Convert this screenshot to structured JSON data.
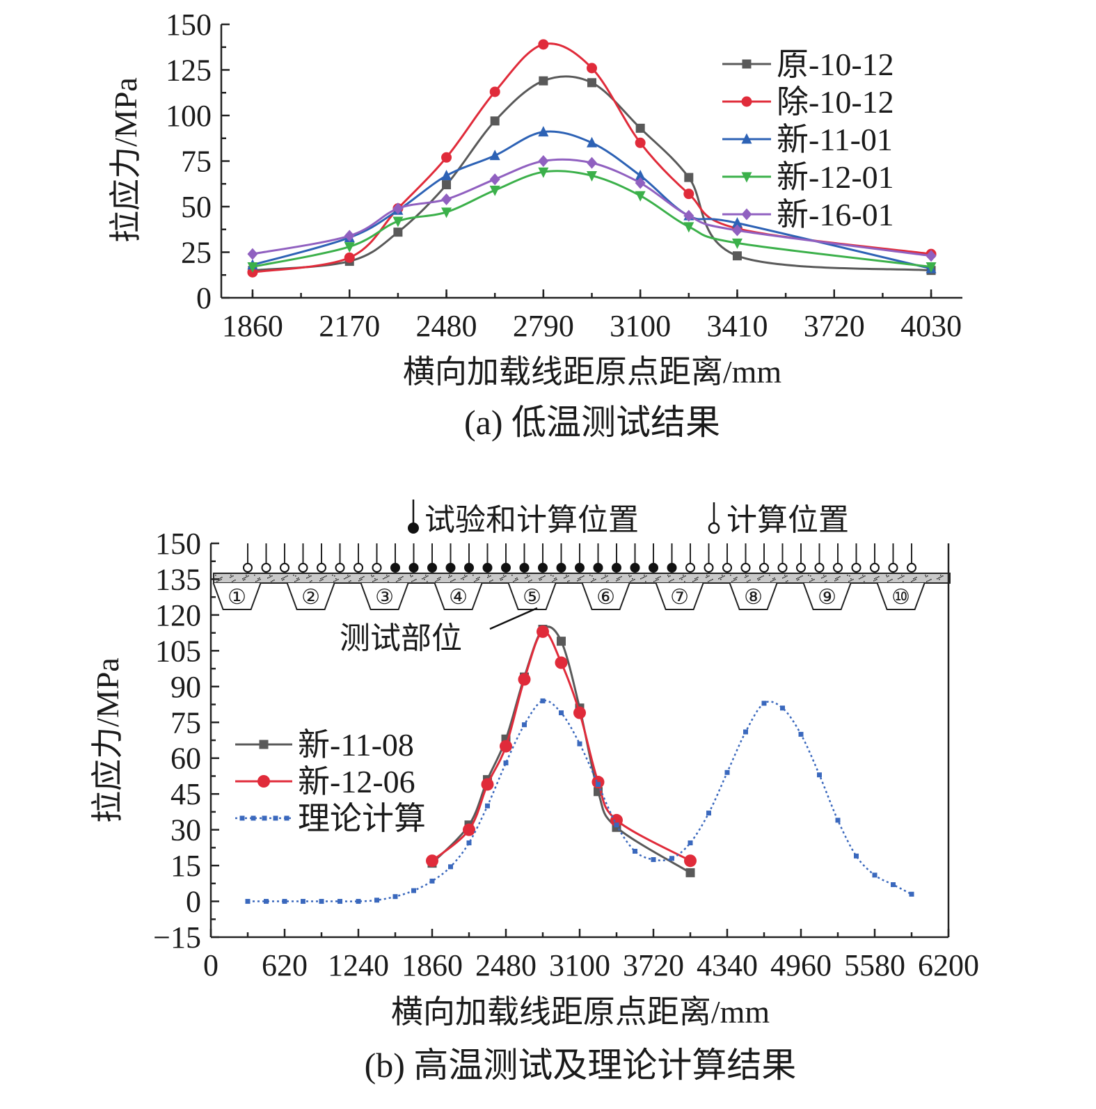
{
  "chart_data": [
    {
      "type": "line",
      "caption": "(a) 低温测试结果",
      "xlabel": "横向加载线距原点距离/mm",
      "ylabel": "拉应力/MPa",
      "xlim": [
        1760,
        4130
      ],
      "ylim": [
        0,
        150
      ],
      "xticks": [
        "1860",
        "2170",
        "2480",
        "2790",
        "3100",
        "3410",
        "3720",
        "4030"
      ],
      "yticks": [
        "0",
        "25",
        "50",
        "75",
        "100",
        "125",
        "150"
      ],
      "legend": "top-right",
      "series": [
        {
          "name": "原-10-12",
          "color": "#595959",
          "marker": "square",
          "x": [
            1860,
            2170,
            2325,
            2480,
            2635,
            2790,
            2945,
            3100,
            3255,
            3410,
            4030
          ],
          "y": [
            15,
            20,
            36,
            62,
            97,
            119,
            118,
            93,
            66,
            23,
            15
          ]
        },
        {
          "name": "除-10-12",
          "color": "#e02b3a",
          "marker": "circle",
          "x": [
            1860,
            2170,
            2325,
            2480,
            2635,
            2790,
            2945,
            3100,
            3255,
            3410,
            4030
          ],
          "y": [
            14,
            22,
            49,
            77,
            113,
            139,
            126,
            85,
            57,
            38,
            24
          ]
        },
        {
          "name": "新-11-01",
          "color": "#2d62b5",
          "marker": "triangle-up",
          "x": [
            1860,
            2170,
            2325,
            2480,
            2635,
            2790,
            2945,
            3100,
            3255,
            3410,
            4030
          ],
          "y": [
            18,
            33,
            48,
            67,
            78,
            91,
            85,
            67,
            45,
            41,
            16
          ]
        },
        {
          "name": "新-12-01",
          "color": "#3bb04a",
          "marker": "triangle-down",
          "x": [
            1860,
            2170,
            2325,
            2480,
            2635,
            2790,
            2945,
            3100,
            3255,
            3410,
            4030
          ],
          "y": [
            17,
            28,
            42,
            47,
            59,
            69,
            67,
            56,
            39,
            30,
            17
          ]
        },
        {
          "name": "新-16-01",
          "color": "#9060c0",
          "marker": "diamond",
          "x": [
            1860,
            2170,
            2325,
            2480,
            2635,
            2790,
            2945,
            3100,
            3255,
            3410,
            4030
          ],
          "y": [
            24,
            34,
            49,
            54,
            65,
            75,
            74,
            63,
            45,
            37,
            23
          ]
        }
      ]
    },
    {
      "type": "line",
      "caption": "(b) 高温测试及理论计算结果",
      "xlabel": "横向加载线距原点距离/mm",
      "ylabel": "拉应力/MPa",
      "xlim": [
        0,
        6200
      ],
      "ylim": [
        -15,
        150
      ],
      "xticks": [
        "0",
        "620",
        "1240",
        "1860",
        "2480",
        "3100",
        "3720",
        "4340",
        "4960",
        "5580",
        "6200"
      ],
      "yticks": [
        "−15",
        "0",
        "15",
        "30",
        "45",
        "60",
        "75",
        "90",
        "105",
        "120",
        "135",
        "150"
      ],
      "legend": "left",
      "series": [
        {
          "name": "新-11-08",
          "color": "#595959",
          "marker": "square",
          "x": [
            1860,
            2170,
            2325,
            2480,
            2635,
            2790,
            2945,
            3100,
            3255,
            3410,
            4030
          ],
          "y": [
            16,
            32,
            51,
            68,
            94,
            114,
            109,
            81,
            46,
            31,
            12
          ]
        },
        {
          "name": "新-12-06",
          "color": "#e02b3a",
          "marker": "circle",
          "x": [
            1860,
            2170,
            2325,
            2480,
            2635,
            2790,
            2945,
            3100,
            3255,
            3410,
            4030
          ],
          "y": [
            17,
            30,
            49,
            65,
            93,
            113,
            100,
            79,
            50,
            34,
            17
          ]
        },
        {
          "name": "理论计算",
          "color": "#3a68bd",
          "marker": "small-square",
          "style": "dotted",
          "x": [
            310,
            465,
            620,
            775,
            930,
            1085,
            1240,
            1395,
            1550,
            1705,
            1860,
            2015,
            2170,
            2325,
            2480,
            2635,
            2790,
            2945,
            3100,
            3255,
            3410,
            3565,
            3720,
            3875,
            4030,
            4185,
            4340,
            4495,
            4650,
            4805,
            4960,
            5115,
            5270,
            5425,
            5580,
            5735,
            5890
          ],
          "y": [
            0,
            0,
            0,
            0,
            0,
            0,
            0,
            0.5,
            2,
            4.5,
            8.5,
            14.5,
            24.5,
            40,
            58,
            74,
            84,
            79,
            66,
            49,
            32,
            21,
            17.5,
            18,
            24.5,
            37,
            54,
            71,
            83,
            81,
            70,
            53,
            34,
            19,
            11,
            7,
            3
          ]
        }
      ],
      "schematic": {
        "legend_solid": "试验和计算位置",
        "legend_hollow": "计算位置",
        "label": "测试部位",
        "ribs": [
          "①",
          "②",
          "③",
          "④",
          "⑤",
          "⑥",
          "⑦",
          "⑧",
          "⑨",
          "⑩"
        ]
      }
    }
  ]
}
